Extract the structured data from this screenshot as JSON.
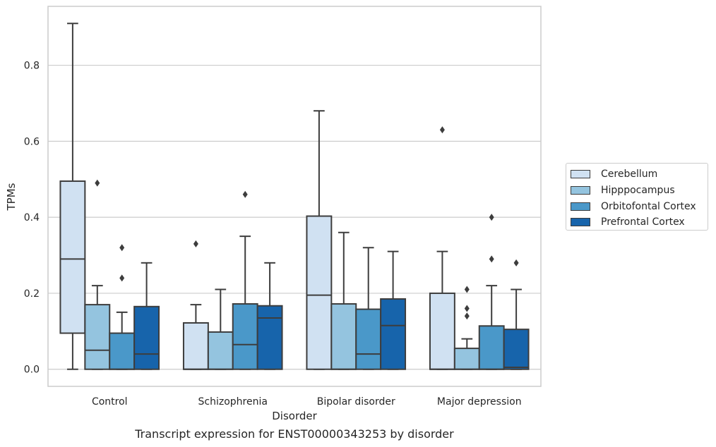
{
  "chart_data": {
    "type": "box",
    "xlabel": "Disorder",
    "ylabel": "TPMs",
    "caption": "Transcript expression for ENST00000343253 by disorder",
    "categories": [
      "Control",
      "Schizophrenia",
      "Bipolar disorder",
      "Major depression"
    ],
    "ylim": [
      -0.045,
      0.955
    ],
    "yticks": [
      0.0,
      0.2,
      0.4,
      0.6,
      0.8
    ],
    "ytick_labels": [
      "0.0",
      "0.2",
      "0.4",
      "0.6",
      "0.8"
    ],
    "grid": true,
    "legend_position": "right",
    "series": [
      {
        "name": "Cerebellum",
        "color": "#d0e1f2",
        "boxes": [
          {
            "min": 0.0,
            "q1": 0.095,
            "median": 0.29,
            "q3": 0.495,
            "max": 0.91,
            "outliers": []
          },
          {
            "min": 0.0,
            "q1": 0.0,
            "median": 0.0,
            "q3": 0.122,
            "max": 0.17,
            "outliers": [
              0.33
            ]
          },
          {
            "min": 0.0,
            "q1": 0.0,
            "median": 0.195,
            "q3": 0.403,
            "max": 0.68,
            "outliers": []
          },
          {
            "min": 0.0,
            "q1": 0.0,
            "median": 0.0,
            "q3": 0.2,
            "max": 0.31,
            "outliers": [
              0.63
            ]
          }
        ]
      },
      {
        "name": "Hipppocampus",
        "color": "#94c4df",
        "boxes": [
          {
            "min": 0.0,
            "q1": 0.0,
            "median": 0.05,
            "q3": 0.17,
            "max": 0.22,
            "outliers": [
              0.49
            ]
          },
          {
            "min": 0.0,
            "q1": 0.0,
            "median": 0.0,
            "q3": 0.098,
            "max": 0.21,
            "outliers": []
          },
          {
            "min": 0.0,
            "q1": 0.0,
            "median": 0.0,
            "q3": 0.172,
            "max": 0.36,
            "outliers": []
          },
          {
            "min": 0.0,
            "q1": 0.0,
            "median": 0.0,
            "q3": 0.055,
            "max": 0.08,
            "outliers": [
              0.14,
              0.16,
              0.21
            ]
          }
        ]
      },
      {
        "name": "Orbitofontal Cortex",
        "color": "#4a98c9",
        "boxes": [
          {
            "min": 0.0,
            "q1": 0.0,
            "median": 0.0,
            "q3": 0.095,
            "max": 0.15,
            "outliers": [
              0.24,
              0.32
            ]
          },
          {
            "min": 0.0,
            "q1": 0.0,
            "median": 0.065,
            "q3": 0.172,
            "max": 0.35,
            "outliers": [
              0.46
            ]
          },
          {
            "min": 0.0,
            "q1": 0.0,
            "median": 0.04,
            "q3": 0.158,
            "max": 0.32,
            "outliers": []
          },
          {
            "min": 0.0,
            "q1": 0.0,
            "median": 0.0,
            "q3": 0.114,
            "max": 0.22,
            "outliers": [
              0.29,
              0.4
            ]
          }
        ]
      },
      {
        "name": "Prefrontal Cortex",
        "color": "#1764ab",
        "boxes": [
          {
            "min": 0.0,
            "q1": 0.0,
            "median": 0.04,
            "q3": 0.165,
            "max": 0.28,
            "outliers": []
          },
          {
            "min": 0.0,
            "q1": 0.0,
            "median": 0.135,
            "q3": 0.167,
            "max": 0.28,
            "outliers": []
          },
          {
            "min": 0.0,
            "q1": 0.0,
            "median": 0.115,
            "q3": 0.185,
            "max": 0.31,
            "outliers": []
          },
          {
            "min": 0.0,
            "q1": 0.0,
            "median": 0.005,
            "q3": 0.105,
            "max": 0.21,
            "outliers": [
              0.28
            ]
          }
        ]
      }
    ]
  }
}
